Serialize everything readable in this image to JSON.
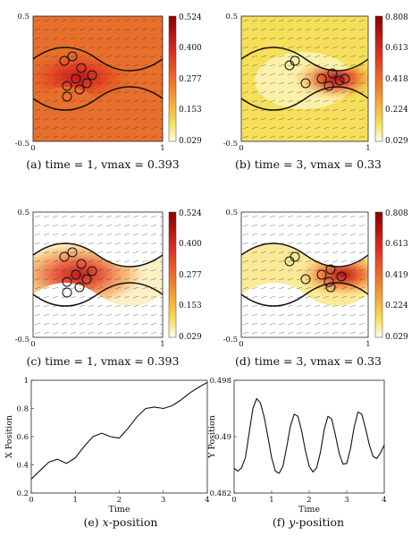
{
  "panels": [
    {
      "id": "a",
      "caption": "(a) time = 1, vmax = 0.393",
      "background": "orange",
      "colorbar_ticks": [
        "0.524",
        "0.400",
        "0.277",
        "0.153",
        "0.029"
      ],
      "corner_labels": {
        "y_top": "0.5",
        "y_bottom": "-0.5",
        "x_left": "0",
        "x_right": "1"
      }
    },
    {
      "id": "b",
      "caption": "(b) time = 3, vmax = 0.33",
      "background": "yellow",
      "colorbar_ticks": [
        "0.808",
        "0.613",
        "0.418",
        "0.224",
        "0.029"
      ],
      "corner_labels": {
        "y_top": "0.5",
        "y_bottom": "-0.5",
        "x_left": "0",
        "x_right": "1"
      }
    },
    {
      "id": "c",
      "caption": "(c) time = 1, vmax = 0.393",
      "background": "white",
      "colorbar_ticks": [
        "0.524",
        "0.400",
        "0.277",
        "0.153",
        "0.029"
      ],
      "corner_labels": {
        "y_top": "0.5",
        "y_bottom": "-0.5",
        "x_left": "0",
        "x_right": "1"
      }
    },
    {
      "id": "d",
      "caption": "(d) time = 3, vmax = 0.33",
      "background": "white",
      "colorbar_ticks": [
        "0.808",
        "0.613",
        "0.419",
        "0.224",
        "0.029"
      ],
      "corner_labels": {
        "y_top": "0.5",
        "y_bottom": "-0.5",
        "x_left": "0",
        "x_right": "1"
      }
    }
  ],
  "chart_data": [
    {
      "type": "line",
      "caption_prefix": "(e) ",
      "caption_var": "x",
      "caption_suffix": "-position",
      "xlabel": "Time",
      "ylabel": "X Position",
      "xlim": [
        0,
        4
      ],
      "ylim": [
        0.2,
        1
      ],
      "xticks": [
        "0",
        "1",
        "2",
        "3",
        "4"
      ],
      "yticks": [
        "0.2",
        "0.4",
        "0.6",
        "0.8",
        "1"
      ],
      "x": [
        0,
        0.2,
        0.4,
        0.6,
        0.8,
        1.0,
        1.2,
        1.4,
        1.6,
        1.8,
        2.0,
        2.2,
        2.4,
        2.6,
        2.8,
        3.0,
        3.2,
        3.4,
        3.6,
        3.8,
        4.0
      ],
      "y": [
        0.3,
        0.36,
        0.42,
        0.44,
        0.41,
        0.45,
        0.53,
        0.6,
        0.625,
        0.6,
        0.59,
        0.66,
        0.74,
        0.8,
        0.81,
        0.8,
        0.82,
        0.86,
        0.91,
        0.95,
        0.985
      ]
    },
    {
      "type": "line",
      "caption_prefix": "(f) ",
      "caption_var": "y",
      "caption_suffix": "-position",
      "xlabel": "Time",
      "ylabel": "Y Position",
      "xlim": [
        0,
        4
      ],
      "ylim": [
        0.482,
        0.498
      ],
      "xticks": [
        "0",
        "1",
        "2",
        "3",
        "4"
      ],
      "yticks": [
        "0.482",
        "0.49",
        "0.498"
      ],
      "x": [
        0,
        0.1,
        0.2,
        0.3,
        0.4,
        0.5,
        0.6,
        0.7,
        0.8,
        0.9,
        1.0,
        1.1,
        1.2,
        1.3,
        1.4,
        1.5,
        1.6,
        1.7,
        1.8,
        1.9,
        2.0,
        2.1,
        2.2,
        2.3,
        2.4,
        2.5,
        2.6,
        2.7,
        2.8,
        2.9,
        3.0,
        3.1,
        3.2,
        3.3,
        3.4,
        3.5,
        3.6,
        3.7,
        3.8,
        3.9,
        4.0
      ],
      "y": [
        0.4855,
        0.4851,
        0.4856,
        0.487,
        0.4905,
        0.494,
        0.4954,
        0.4948,
        0.4928,
        0.49,
        0.487,
        0.4851,
        0.4848,
        0.4858,
        0.4885,
        0.4915,
        0.4932,
        0.4929,
        0.4908,
        0.488,
        0.4858,
        0.485,
        0.4856,
        0.4878,
        0.491,
        0.4929,
        0.4925,
        0.4902,
        0.4876,
        0.4861,
        0.4862,
        0.4883,
        0.4914,
        0.4935,
        0.4932,
        0.4912,
        0.4889,
        0.4872,
        0.4869,
        0.4877,
        0.4888
      ]
    }
  ]
}
